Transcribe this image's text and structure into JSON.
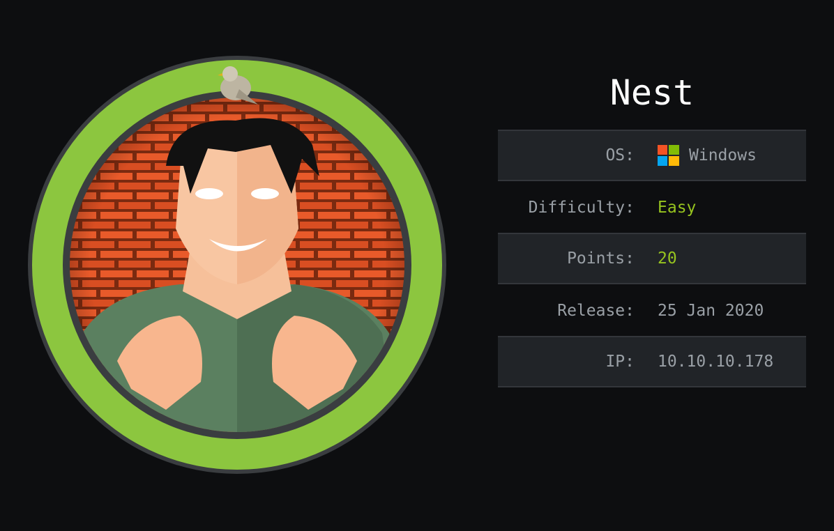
{
  "machine": {
    "name": "Nest",
    "rows": [
      {
        "label": "OS:",
        "value": "Windows",
        "icon": "windows-logo-icon"
      },
      {
        "label": "Difficulty:",
        "value": "Easy"
      },
      {
        "label": "Points:",
        "value": "20"
      },
      {
        "label": "Release:",
        "value": "25 Jan 2020"
      },
      {
        "label": "IP:",
        "value": "10.10.10.178"
      }
    ]
  },
  "colors": {
    "background": "#0d0e10",
    "row_shade": "#212428",
    "accent_green": "#97c41f",
    "ring_green": "#8cc63f",
    "label_gray": "#9aa0a6"
  }
}
